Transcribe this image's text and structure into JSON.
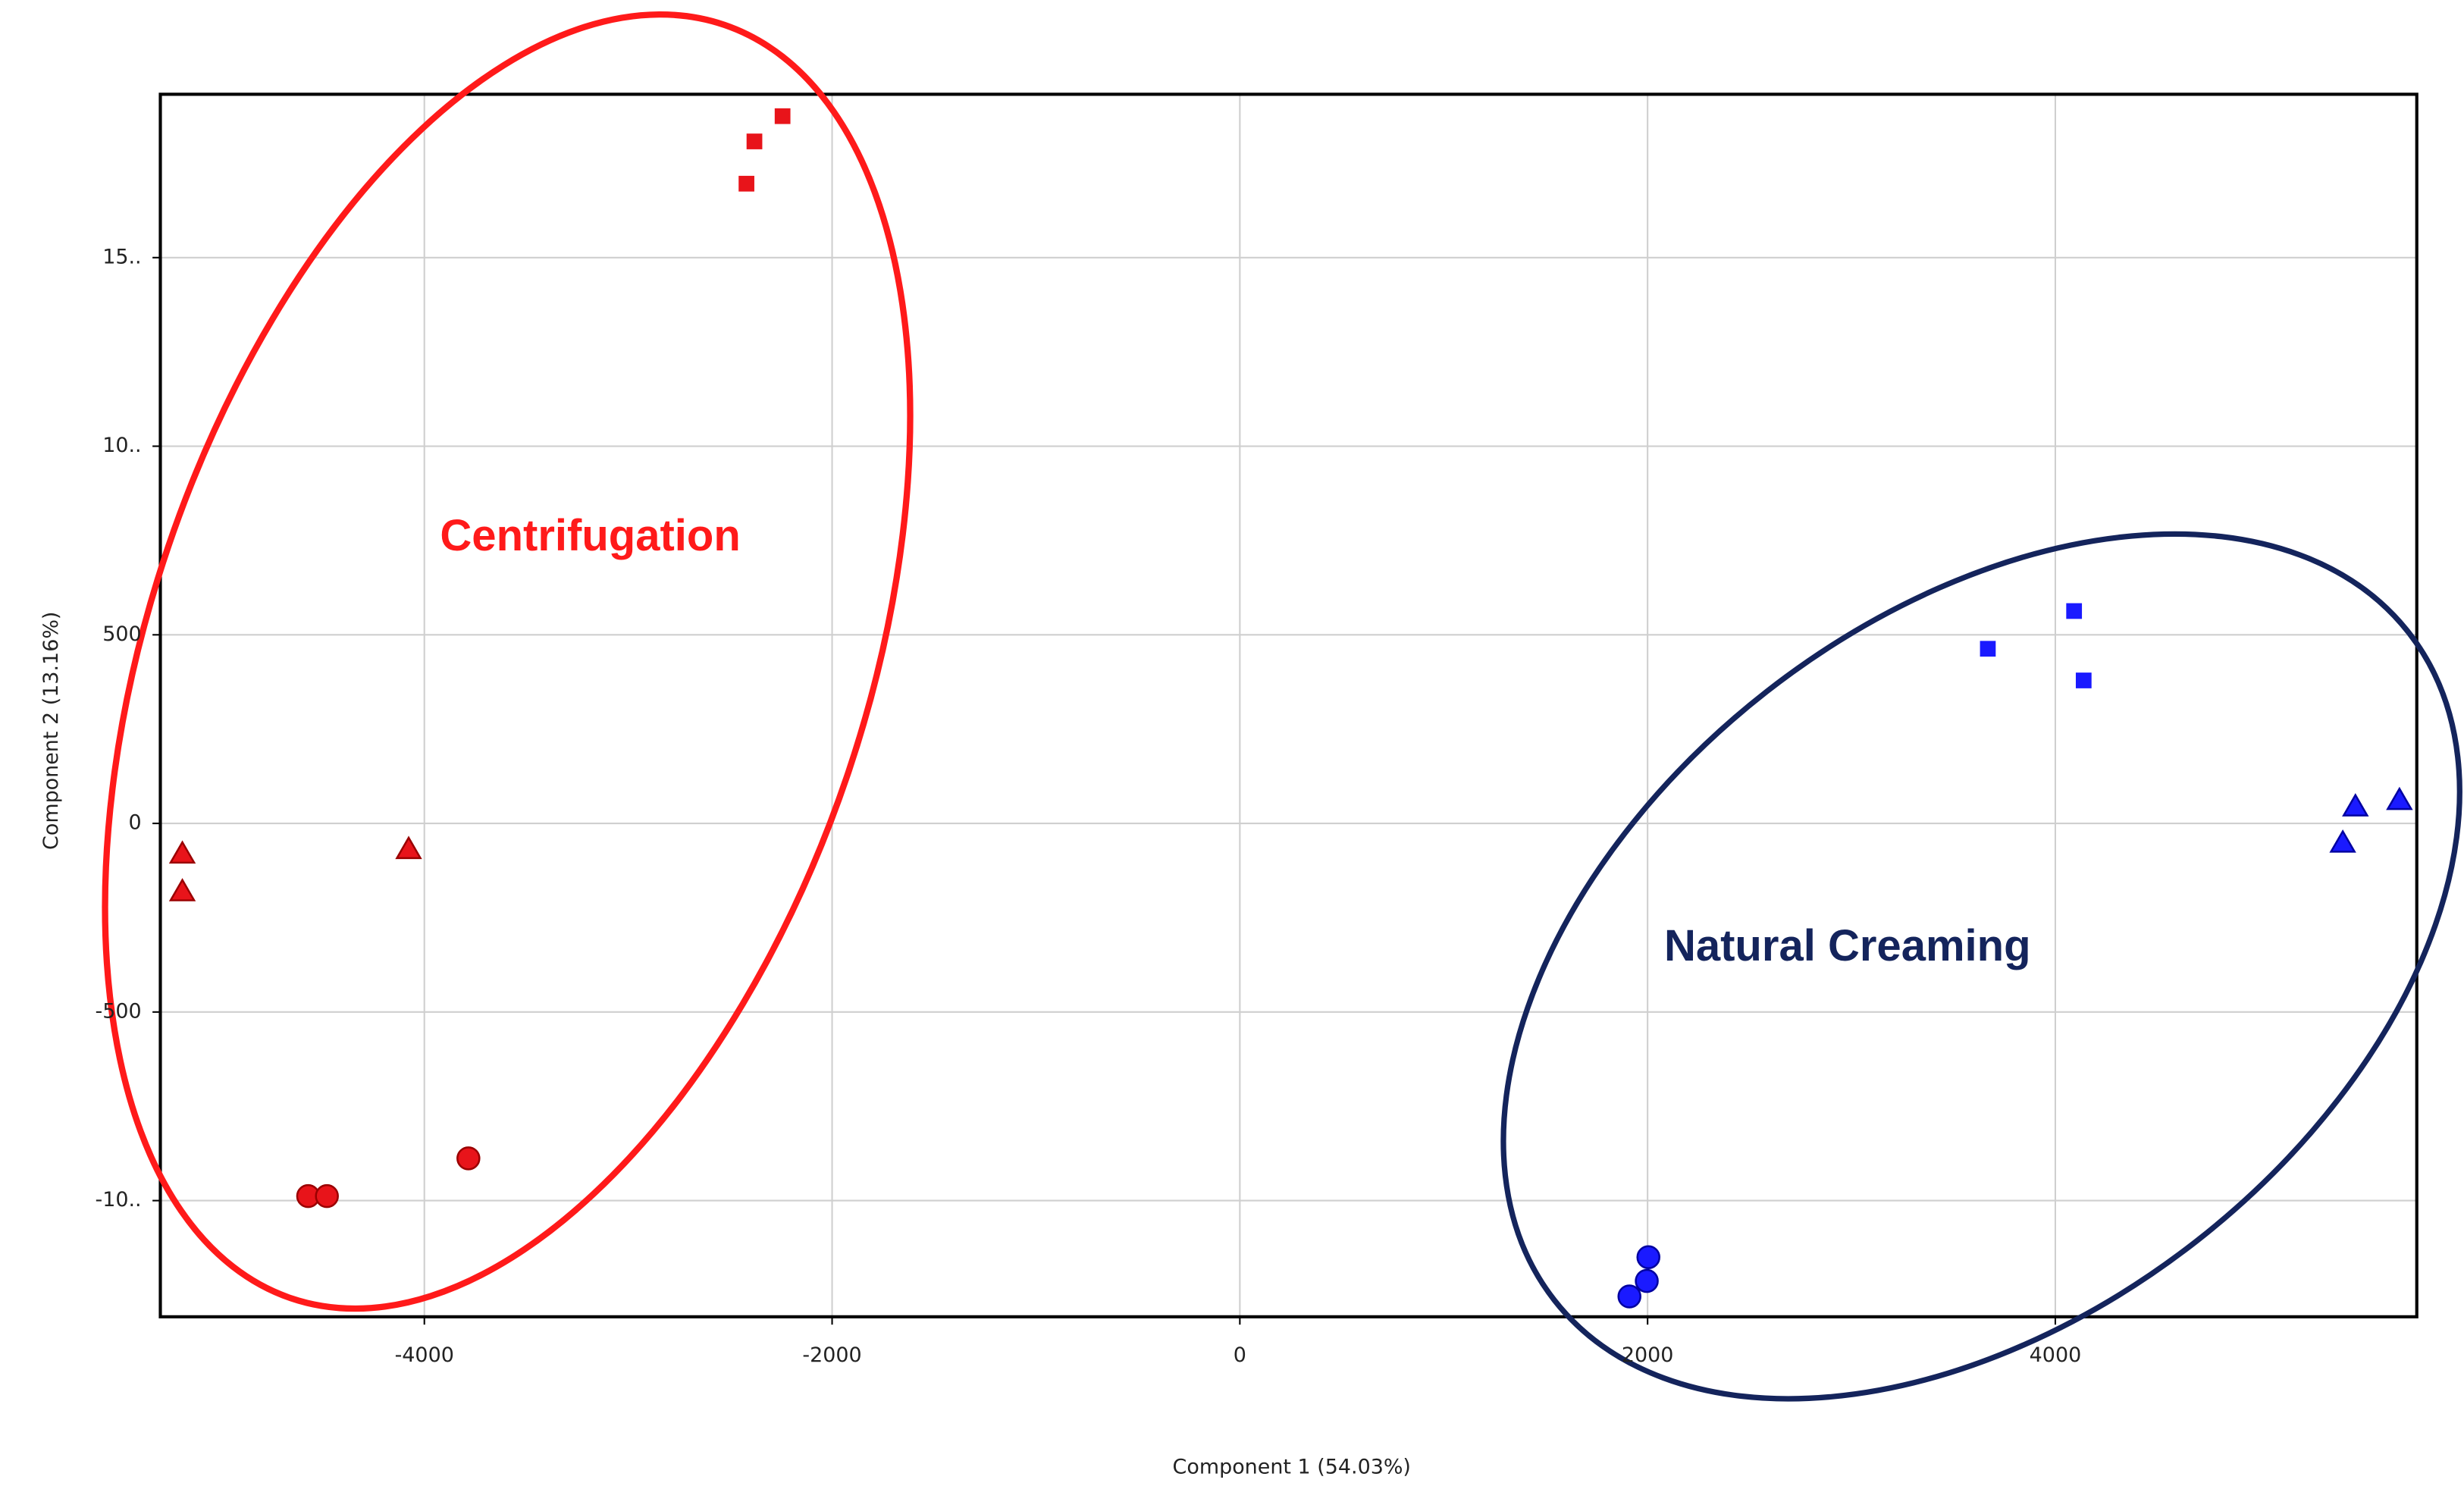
{
  "chart_data": {
    "type": "scatter",
    "xlabel": "Component 1 (54.03%)",
    "ylabel": "Component 2 (13.16%)",
    "annotations": [
      "Centrifugation",
      "Natural Creaming"
    ],
    "xlim": [
      -5295,
      5773
    ],
    "ylim": [
      -1308,
      1933
    ],
    "xticks": [
      -4000,
      -2000,
      0,
      2000,
      4000
    ],
    "yticks": [
      {
        "value": 1500,
        "label": "15.."
      },
      {
        "value": 1000,
        "label": "10.."
      },
      500,
      0,
      -500,
      {
        "value": -1000,
        "label": "-10.."
      }
    ],
    "grid": true,
    "series": [
      {
        "color": "#e8141a",
        "marker": "square",
        "x": [
          -2420,
          -2381,
          -2243
        ],
        "values": [
          1696,
          1808,
          1875
        ]
      },
      {
        "color": "#e8141a",
        "marker": "triangle",
        "x": [
          -5187,
          -5187,
          -4077
        ],
        "values": [
          -79,
          -179,
          -67
        ]
      },
      {
        "color": "#e8141a",
        "marker": "circle",
        "x": [
          -4570,
          -4478,
          -3784
        ],
        "values": [
          -988,
          -988,
          -888
        ]
      },
      {
        "color": "#1a1aff",
        "marker": "square",
        "x": [
          3669,
          4092,
          4139
        ],
        "values": [
          463,
          563,
          379
        ]
      },
      {
        "color": "#1a1aff",
        "marker": "triangle",
        "x": [
          5410,
          5472,
          5688
        ],
        "values": [
          -50,
          46,
          63
        ]
      },
      {
        "color": "#1a1aff",
        "marker": "circle",
        "x": [
          1911,
          1996,
          2004
        ],
        "values": [
          -1254,
          -1213,
          -1150
        ]
      }
    ]
  }
}
